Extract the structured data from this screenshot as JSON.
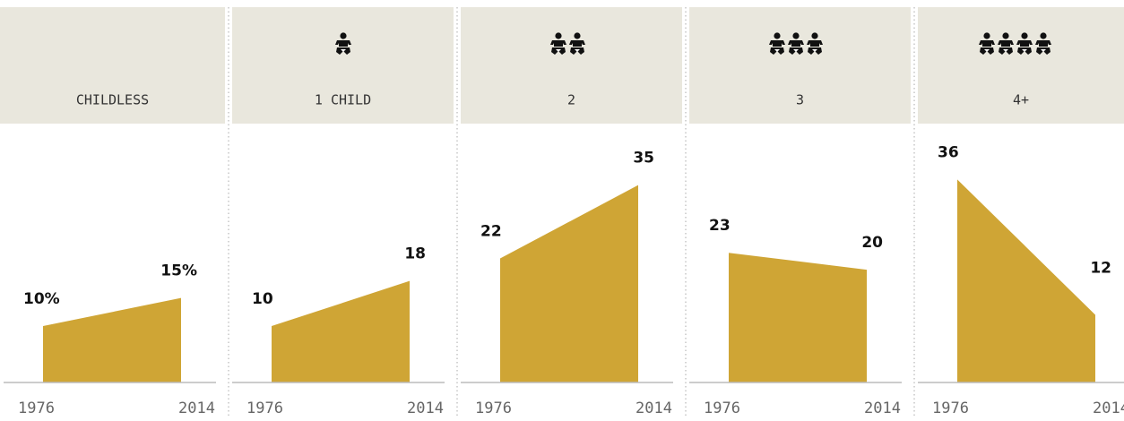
{
  "chart_data": [
    {
      "type": "area",
      "title": "CHILDLESS",
      "x": [
        "1976",
        "2014"
      ],
      "values": [
        10,
        15
      ],
      "value_labels": [
        "10%",
        "15%"
      ],
      "color": "#cfa535",
      "ylim": [
        0,
        44
      ]
    },
    {
      "type": "area",
      "title": "1 CHILD",
      "x": [
        "1976",
        "2014"
      ],
      "values": [
        10,
        18
      ],
      "color": "#cfa535",
      "ylim": [
        0,
        44
      ]
    },
    {
      "type": "area",
      "title": "2",
      "x": [
        "1976",
        "2014"
      ],
      "values": [
        22,
        35
      ],
      "color": "#cfa535",
      "ylim": [
        0,
        44
      ]
    },
    {
      "type": "area",
      "title": "3",
      "x": [
        "1976",
        "2014"
      ],
      "values": [
        23,
        20
      ],
      "color": "#cfa535",
      "ylim": [
        0,
        44
      ]
    },
    {
      "type": "area",
      "title": "4+",
      "x": [
        "1976",
        "2014"
      ],
      "values": [
        36,
        12
      ],
      "color": "#cfa535",
      "ylim": [
        0,
        44
      ]
    }
  ]
}
